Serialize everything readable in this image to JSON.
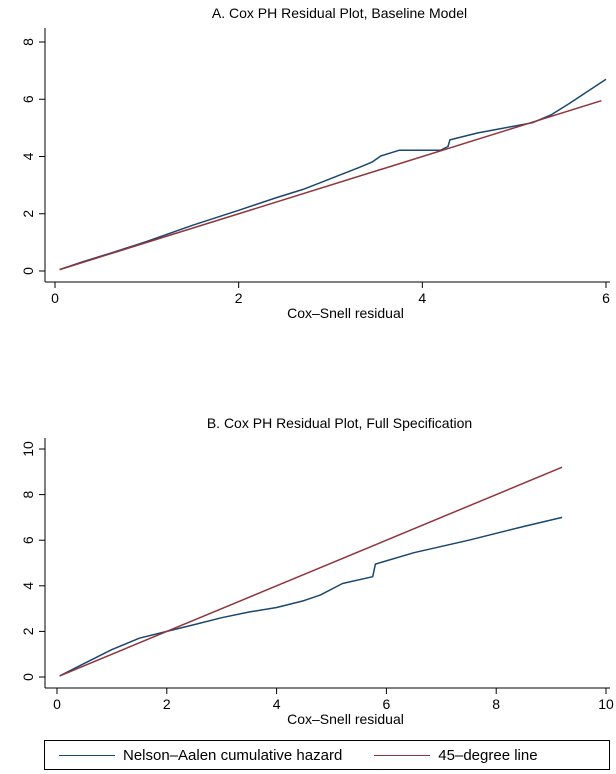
{
  "colors": {
    "nelson_aalen": "#1a476f",
    "reference": "#90353b",
    "axis": "#000000",
    "background": "#ffffff"
  },
  "legend": {
    "items": [
      {
        "label": "Nelson–Aalen cumulative hazard",
        "color": "#1a476f"
      },
      {
        "label": "45–degree line",
        "color": "#90353b"
      }
    ],
    "placement": "bottom"
  },
  "chart_data": [
    {
      "type": "line",
      "title": "A. Cox PH Residual Plot, Baseline Model",
      "xlabel": "Cox–Snell residual",
      "ylabel": "",
      "xlim": [
        0,
        6
      ],
      "ylim": [
        0,
        8
      ],
      "xticks": [
        "0",
        "2",
        "4",
        "6"
      ],
      "yticks": [
        "0",
        "2",
        "4",
        "6",
        "8"
      ],
      "grid": false,
      "series": [
        {
          "name": "Nelson–Aalen cumulative hazard",
          "x": [
            0.05,
            0.3,
            0.6,
            1.0,
            1.5,
            2.0,
            2.4,
            2.7,
            2.9,
            3.1,
            3.3,
            3.45,
            3.55,
            3.75,
            4.2,
            4.28,
            4.3,
            4.6,
            5.2,
            5.4,
            5.6,
            6.0
          ],
          "y": [
            0.05,
            0.32,
            0.62,
            1.03,
            1.6,
            2.12,
            2.55,
            2.85,
            3.1,
            3.35,
            3.6,
            3.8,
            4.02,
            4.22,
            4.22,
            4.35,
            4.58,
            4.82,
            5.18,
            5.45,
            5.85,
            6.7
          ]
        },
        {
          "name": "45–degree line",
          "x": [
            0.05,
            5.95
          ],
          "y": [
            0.05,
            5.95
          ]
        }
      ]
    },
    {
      "type": "line",
      "title": "B. Cox PH Residual Plot, Full Specification",
      "xlabel": "Cox–Snell residual",
      "ylabel": "",
      "xlim": [
        0,
        10
      ],
      "ylim": [
        0,
        10
      ],
      "xticks": [
        "0",
        "2",
        "4",
        "6",
        "8",
        "10"
      ],
      "yticks": [
        "0",
        "2",
        "4",
        "6",
        "8",
        "10"
      ],
      "grid": false,
      "series": [
        {
          "name": "Nelson–Aalen cumulative hazard",
          "x": [
            0.05,
            0.5,
            1.0,
            1.5,
            2.0,
            2.5,
            3.0,
            3.5,
            4.0,
            4.5,
            4.8,
            5.2,
            5.75,
            5.8,
            6.5,
            7.5,
            8.5,
            9.2
          ],
          "y": [
            0.05,
            0.6,
            1.2,
            1.7,
            2.0,
            2.3,
            2.6,
            2.85,
            3.05,
            3.35,
            3.6,
            4.1,
            4.4,
            4.95,
            5.45,
            6.0,
            6.6,
            7.0
          ]
        },
        {
          "name": "45–degree line",
          "x": [
            0.05,
            9.2
          ],
          "y": [
            0.05,
            9.2
          ]
        }
      ]
    }
  ]
}
